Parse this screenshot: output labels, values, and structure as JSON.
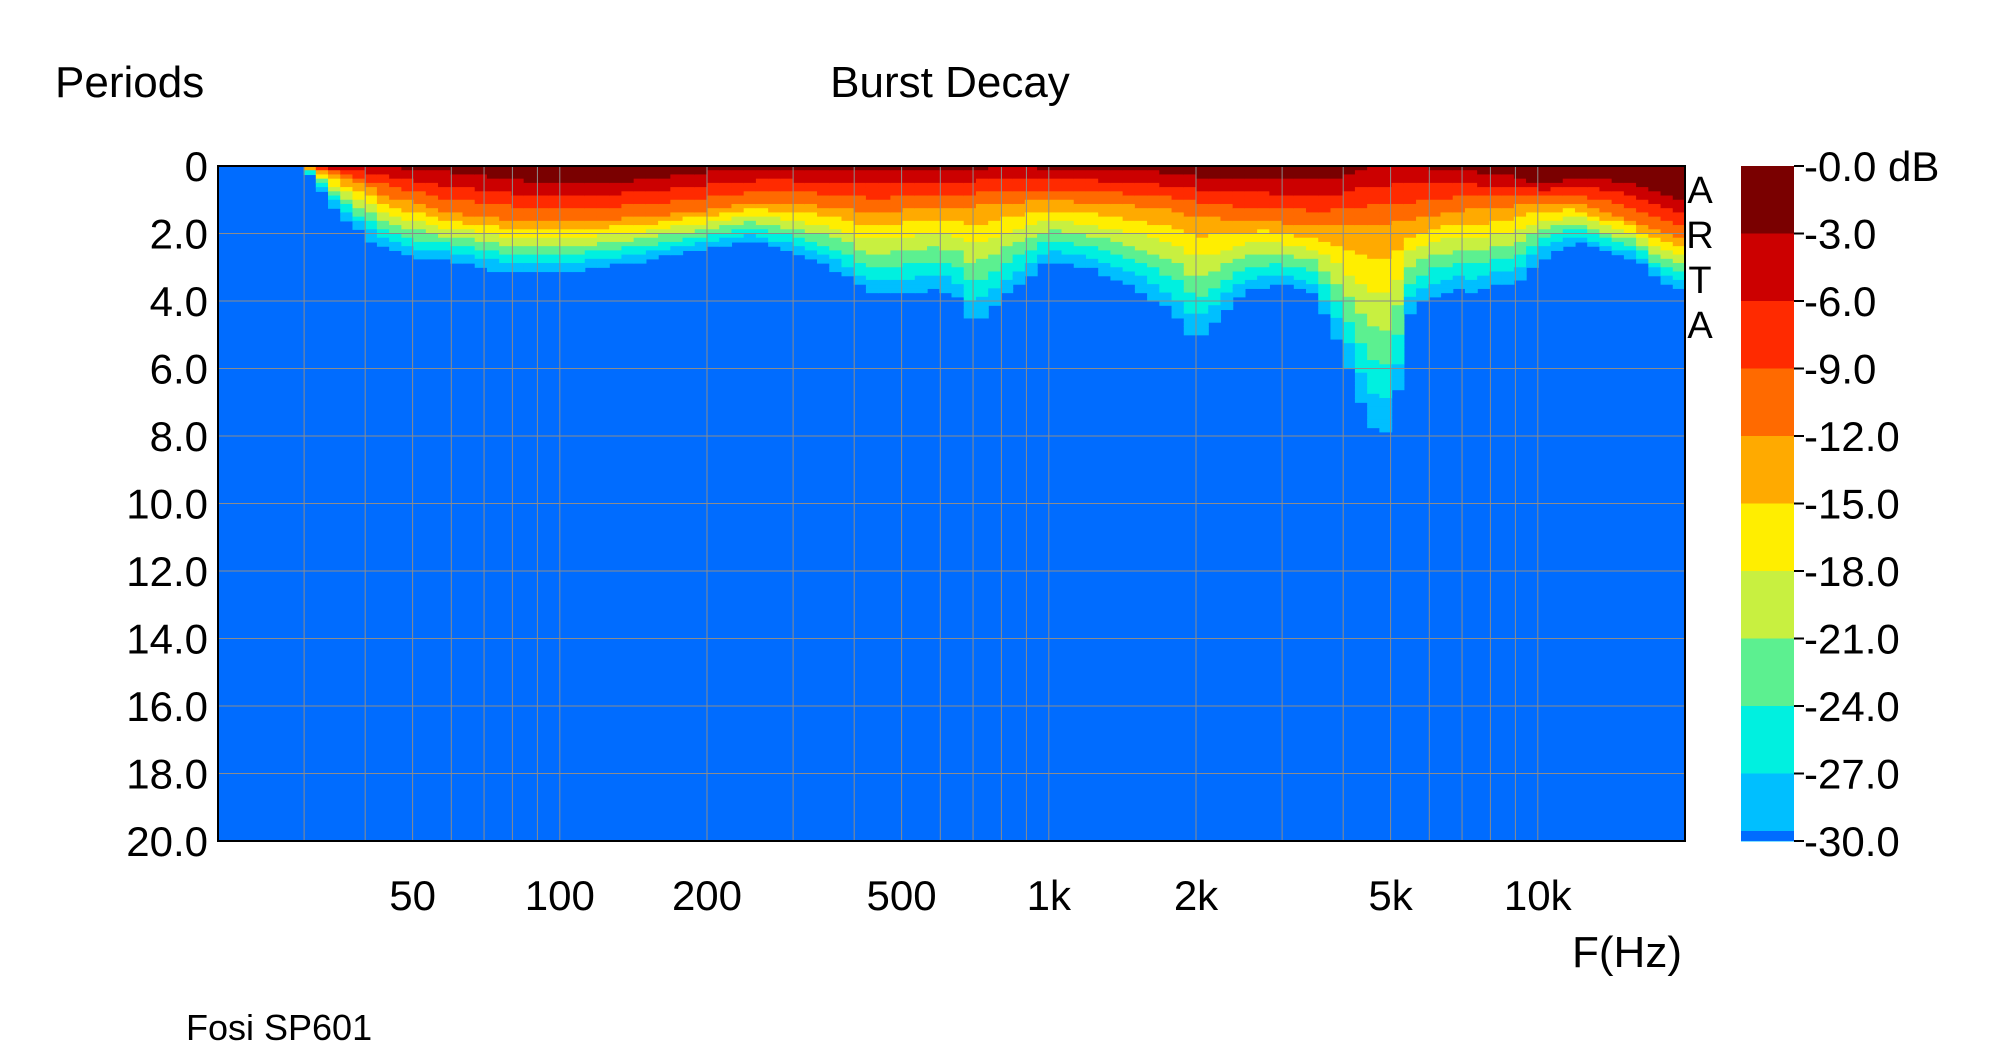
{
  "chart_data": {
    "type": "heatmap",
    "title": "Burst Decay",
    "ylabel": "Periods",
    "xlabel": "F(Hz)",
    "caption": "Fosi SP601",
    "watermark": "ARTA",
    "x_scale": "log",
    "xlim": [
      20,
      20000
    ],
    "ylim": [
      0,
      20
    ],
    "y_inverted": true,
    "grid": true,
    "x_ticks": [
      {
        "value": 50,
        "label": "50"
      },
      {
        "value": 100,
        "label": "100"
      },
      {
        "value": 200,
        "label": "200"
      },
      {
        "value": 500,
        "label": "500"
      },
      {
        "value": 1000,
        "label": "1k"
      },
      {
        "value": 2000,
        "label": "2k"
      },
      {
        "value": 5000,
        "label": "5k"
      },
      {
        "value": 10000,
        "label": "10k"
      }
    ],
    "y_ticks": [
      "0",
      "2.0",
      "4.0",
      "6.0",
      "8.0",
      "10.0",
      "12.0",
      "14.0",
      "16.0",
      "18.0",
      "20.0"
    ],
    "colorbar": {
      "labels": [
        "-0.0 dB",
        "-3.0",
        "-6.0",
        "-9.0",
        "-12.0",
        "-15.0",
        "-18.0",
        "-21.0",
        "-24.0",
        "-27.0",
        "-30.0"
      ],
      "colors": [
        "#7a0000",
        "#cc0000",
        "#ff2a00",
        "#ff6a00",
        "#ffaa00",
        "#ffee00",
        "#c8f040",
        "#5cf090",
        "#00f0e0",
        "#00bfff",
        "#0066ff"
      ],
      "floor_color": "#006cff"
    },
    "decay_envelope": {
      "frequency_hz": [
        30,
        35,
        40,
        45,
        50,
        60,
        70,
        80,
        90,
        100,
        120,
        150,
        200,
        250,
        300,
        350,
        400,
        420,
        450,
        500,
        550,
        600,
        650,
        700,
        800,
        1000,
        1200,
        1500,
        1700,
        1800,
        2000,
        2500,
        2800,
        3000,
        3500,
        4000,
        4500,
        5000,
        5500,
        6000,
        7000,
        7500,
        8000,
        9000,
        10000,
        12000,
        14000,
        16000,
        18000,
        20000
      ],
      "periods_to_minus_3db": [
        0,
        0,
        0,
        0,
        0.1,
        0.2,
        0.3,
        0.4,
        0.5,
        0.5,
        0.5,
        0.4,
        0.2,
        0.1,
        0.1,
        0.1,
        0.1,
        0.1,
        0.1,
        0.1,
        0.1,
        0.1,
        0.1,
        0.1,
        0.0,
        0.1,
        0.1,
        0.1,
        0.2,
        0.2,
        0.3,
        0.4,
        0.4,
        0.4,
        0.4,
        0.3,
        0.0,
        0.0,
        0.0,
        0.1,
        0.1,
        0.2,
        0.2,
        0.3,
        0.5,
        0.4,
        0.4,
        0.6,
        0.9,
        1.0
      ],
      "periods_to_minus_30db": [
        0,
        1.3,
        2.1,
        2.5,
        2.7,
        2.8,
        3.0,
        3.2,
        3.1,
        3.2,
        3.0,
        2.8,
        2.4,
        2.2,
        2.6,
        2.9,
        3.4,
        3.7,
        3.8,
        3.8,
        3.7,
        3.6,
        3.9,
        4.7,
        3.9,
        2.8,
        3.0,
        3.6,
        4.1,
        4.3,
        5.2,
        3.7,
        3.6,
        3.5,
        3.8,
        5.5,
        7.6,
        8.0,
        4.2,
        3.9,
        3.6,
        3.8,
        3.5,
        3.5,
        2.8,
        2.2,
        2.6,
        2.8,
        3.5,
        3.7
      ],
      "periods_to_minus_12db": [
        0,
        0.3,
        0.6,
        0.9,
        1.1,
        1.4,
        1.5,
        1.6,
        1.6,
        1.6,
        1.6,
        1.5,
        1.3,
        1.1,
        1.1,
        1.2,
        1.3,
        1.4,
        1.4,
        1.3,
        1.2,
        1.2,
        1.2,
        1.2,
        1.1,
        1.0,
        1.1,
        1.2,
        1.3,
        1.3,
        1.5,
        1.6,
        1.6,
        1.7,
        1.8,
        1.8,
        1.8,
        1.7,
        1.6,
        1.5,
        1.3,
        1.3,
        1.3,
        1.2,
        1.1,
        1.1,
        1.4,
        1.7,
        2.0,
        2.1
      ]
    }
  }
}
